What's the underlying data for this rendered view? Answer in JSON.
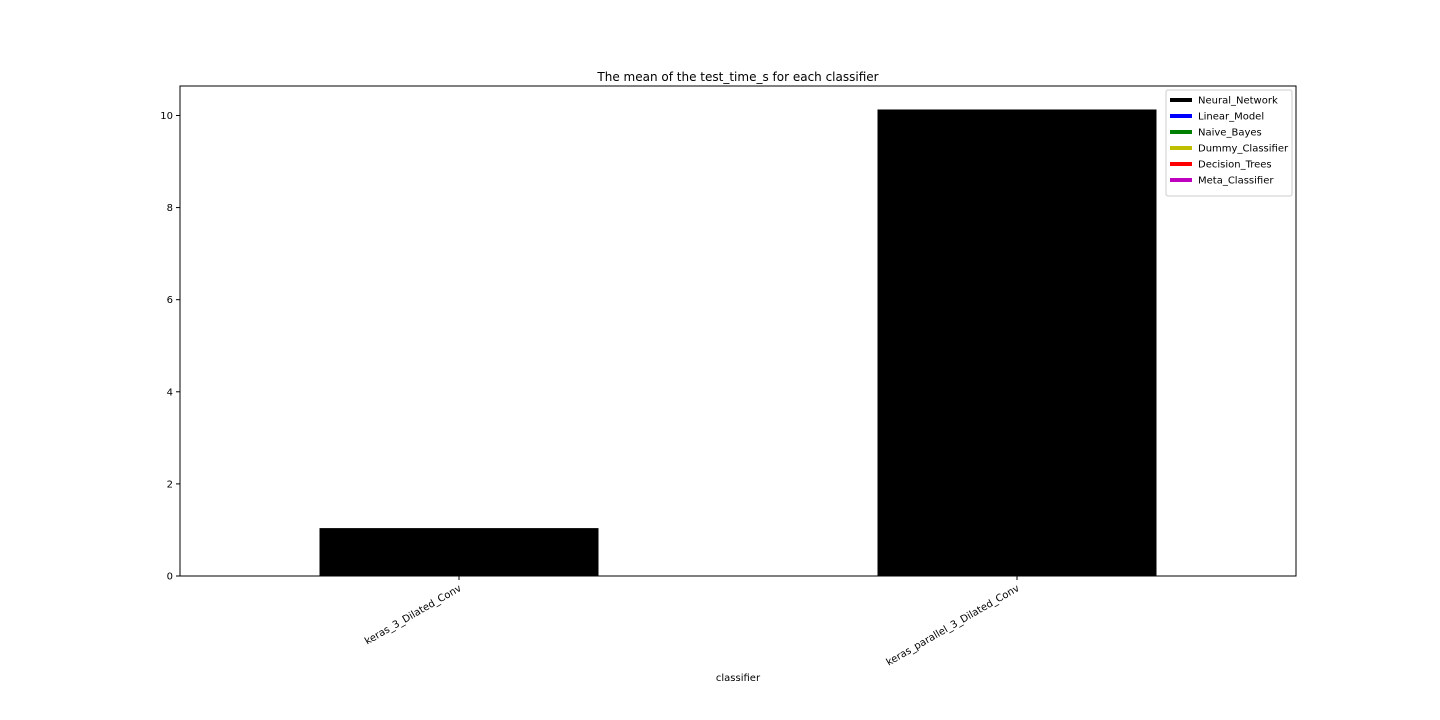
{
  "chart_data": {
    "type": "bar",
    "title": "The mean of  the test_time_s for each classifier",
    "xlabel": "classifier",
    "ylabel": "",
    "categories": [
      "keras_3_Dilated_Conv",
      "keras_parallel_3_Dilated_Conv"
    ],
    "values": [
      1.04,
      10.13
    ],
    "bar_colors": [
      "#000000",
      "#000000"
    ],
    "ylim": [
      0,
      10.64
    ],
    "yticks": [
      0,
      2,
      4,
      6,
      8,
      10
    ],
    "ytick_labels": [
      "0",
      "2",
      "4",
      "6",
      "8",
      "10"
    ],
    "grid": false,
    "legend": {
      "position": "top-right",
      "entries": [
        {
          "label": "Neural_Network",
          "color": "#000000"
        },
        {
          "label": "Linear_Model",
          "color": "#0000ff"
        },
        {
          "label": "Naive_Bayes",
          "color": "#008000"
        },
        {
          "label": "Dummy_Classifier",
          "color": "#bfbf00"
        },
        {
          "label": "Decision_Trees",
          "color": "#ff0000"
        },
        {
          "label": "Meta_Classifier",
          "color": "#bf00bf"
        }
      ]
    }
  }
}
